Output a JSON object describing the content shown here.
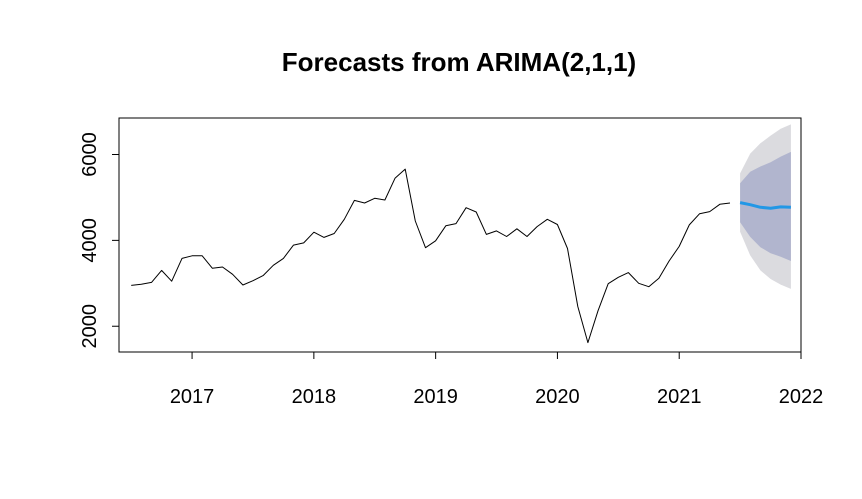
{
  "chart_data": {
    "type": "line",
    "title": "Forecasts from ARIMA(2,1,1)",
    "xlabel": "",
    "ylabel": "",
    "xlim": [
      2016.4,
      2022.0
    ],
    "ylim": [
      1400,
      6850
    ],
    "x_ticks": [
      2017,
      2018,
      2019,
      2020,
      2021,
      2022
    ],
    "x_tick_labels": [
      "2017",
      "2018",
      "2019",
      "2020",
      "2021",
      "2022"
    ],
    "y_ticks": [
      2000,
      4000,
      6000
    ],
    "y_tick_labels": [
      "2000",
      "4000",
      "6000"
    ],
    "colors": {
      "history": "#000000",
      "forecast": "#2297E6",
      "band95": "#DBDBDF",
      "band80": "#B1B5CE"
    },
    "series": [
      {
        "name": "observed",
        "x": [
          2016.5,
          2016.583,
          2016.667,
          2016.75,
          2016.833,
          2016.917,
          2017.0,
          2017.083,
          2017.167,
          2017.25,
          2017.333,
          2017.417,
          2017.5,
          2017.583,
          2017.667,
          2017.75,
          2017.833,
          2017.917,
          2018.0,
          2018.083,
          2018.167,
          2018.25,
          2018.333,
          2018.417,
          2018.5,
          2018.583,
          2018.667,
          2018.75,
          2018.833,
          2018.917,
          2019.0,
          2019.083,
          2019.167,
          2019.25,
          2019.333,
          2019.417,
          2019.5,
          2019.583,
          2019.667,
          2019.75,
          2019.833,
          2019.917,
          2020.0,
          2020.083,
          2020.167,
          2020.25,
          2020.333,
          2020.417,
          2020.5,
          2020.583,
          2020.667,
          2020.75,
          2020.833,
          2020.917,
          2021.0,
          2021.083,
          2021.167,
          2021.25,
          2021.333,
          2021.417
        ],
        "values": [
          2950,
          2980,
          3020,
          3300,
          3050,
          3580,
          3640,
          3640,
          3350,
          3380,
          3210,
          2960,
          3060,
          3180,
          3420,
          3580,
          3890,
          3940,
          4190,
          4070,
          4160,
          4490,
          4930,
          4870,
          4980,
          4940,
          5450,
          5660,
          4450,
          3830,
          3990,
          4340,
          4390,
          4760,
          4660,
          4140,
          4220,
          4090,
          4270,
          4090,
          4320,
          4490,
          4370,
          3810,
          2460,
          1620,
          2360,
          2990,
          3140,
          3250,
          3000,
          2920,
          3120,
          3520,
          3860,
          4360,
          4620,
          4670,
          4840,
          4870
        ]
      },
      {
        "name": "forecast",
        "x": [
          2021.5,
          2021.583,
          2021.667,
          2021.75,
          2021.833,
          2021.917
        ],
        "values": [
          4880,
          4830,
          4770,
          4750,
          4780,
          4770
        ]
      }
    ],
    "bands": [
      {
        "name": "95% interval",
        "x": [
          2021.5,
          2021.583,
          2021.667,
          2021.75,
          2021.833,
          2021.917
        ],
        "lower": [
          4200,
          3650,
          3300,
          3100,
          2970,
          2870
        ],
        "upper": [
          5560,
          6020,
          6260,
          6440,
          6600,
          6700
        ]
      },
      {
        "name": "80% interval",
        "x": [
          2021.5,
          2021.583,
          2021.667,
          2021.75,
          2021.833,
          2021.917
        ],
        "lower": [
          4420,
          4080,
          3840,
          3700,
          3620,
          3520
        ],
        "upper": [
          5330,
          5600,
          5720,
          5820,
          5950,
          6060
        ]
      }
    ]
  }
}
